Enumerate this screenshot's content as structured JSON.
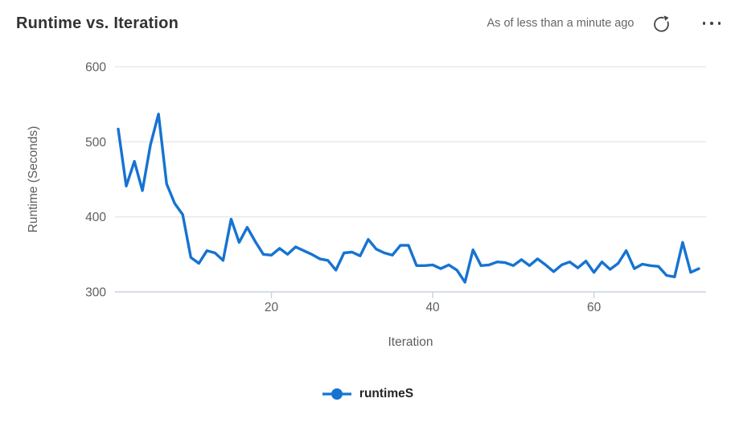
{
  "header": {
    "title": "Runtime vs. Iteration",
    "status": "As of less than a minute ago"
  },
  "icons": {
    "refresh": "refresh-icon",
    "more": "ellipsis-icon",
    "legend_marker": "line-dot-marker-icon"
  },
  "colors": {
    "series_blue": "#1673d2",
    "title_text": "#333333",
    "secondary_text": "#666666",
    "tick_text": "#605e5c",
    "gridline": "#e8e8e8",
    "axis_line": "#c9d2e4",
    "icon": "#424242",
    "legend_text": "#252423"
  },
  "chart_data": {
    "type": "line",
    "title": "Runtime vs. Iteration",
    "xlabel": "Iteration",
    "ylabel": "Runtime (Seconds)",
    "x_ticks": [
      20,
      40,
      60
    ],
    "y_ticks": [
      300,
      400,
      500,
      600
    ],
    "xlim": [
      0.6,
      73.9
    ],
    "ylim": [
      300,
      600
    ],
    "grid": true,
    "legend": {
      "position": "bottom",
      "entries": [
        "runtimeS"
      ]
    },
    "series": [
      {
        "name": "runtimeS",
        "color": "#1673d2",
        "x": [
          1,
          2,
          3,
          4,
          5,
          6,
          7,
          8,
          9,
          10,
          11,
          12,
          13,
          14,
          15,
          16,
          17,
          18,
          19,
          20,
          21,
          22,
          23,
          24,
          25,
          26,
          27,
          28,
          29,
          30,
          31,
          32,
          33,
          34,
          35,
          36,
          37,
          38,
          39,
          40,
          41,
          42,
          43,
          44,
          45,
          46,
          47,
          48,
          49,
          50,
          51,
          52,
          53,
          54,
          55,
          56,
          57,
          58,
          59,
          60,
          61,
          62,
          63,
          64,
          65,
          66,
          67,
          68,
          69,
          70,
          71,
          72,
          73
        ],
        "y": [
          517,
          441,
          474,
          435,
          496,
          537,
          444,
          418,
          403,
          346,
          338,
          355,
          352,
          342,
          397,
          366,
          386,
          367,
          350,
          349,
          358,
          350,
          360,
          355,
          350,
          344,
          342,
          329,
          352,
          353,
          348,
          370,
          357,
          352,
          349,
          362,
          362,
          335,
          335,
          336,
          331,
          336,
          329,
          313,
          356,
          335,
          336,
          340,
          339,
          335,
          343,
          335,
          344,
          336,
          327,
          336,
          340,
          332,
          341,
          326,
          340,
          330,
          338,
          355,
          331,
          337,
          335,
          334,
          322,
          320,
          366,
          326,
          331
        ]
      }
    ]
  }
}
